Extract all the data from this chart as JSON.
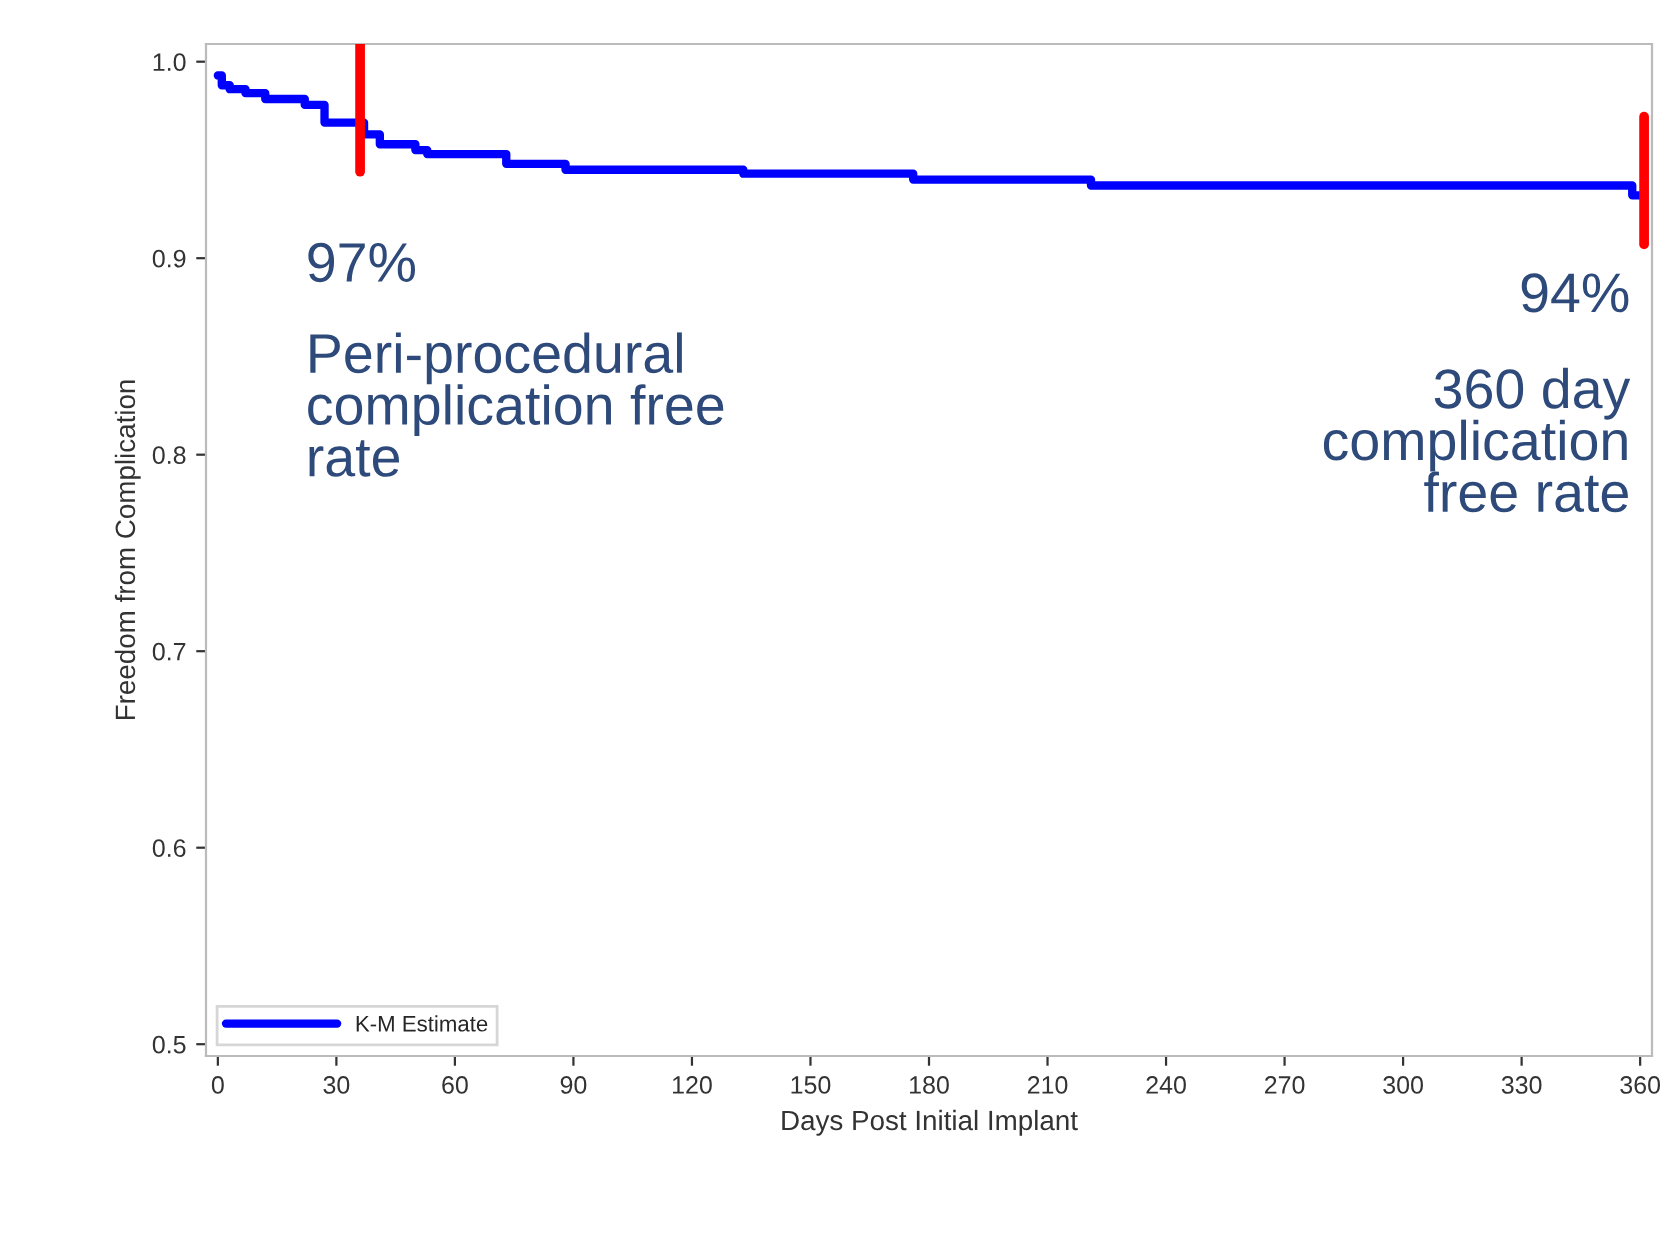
{
  "chart_data": {
    "type": "step",
    "xlabel": "Days Post Initial Implant",
    "ylabel": "Freedom from Complication",
    "x": [
      0,
      1,
      3,
      7,
      12,
      22,
      27,
      37,
      41,
      50,
      53,
      73,
      88,
      133,
      176,
      221,
      358,
      361
    ],
    "series": [
      {
        "name": "K-M Estimate",
        "color": "#0000ff",
        "values": [
          0.993,
          0.988,
          0.986,
          0.984,
          0.981,
          0.978,
          0.969,
          0.963,
          0.958,
          0.955,
          0.953,
          0.948,
          0.945,
          0.943,
          0.94,
          0.937,
          0.932,
          0.932
        ]
      }
    ],
    "xlim": [
      -3,
      363
    ],
    "xticks": [
      0,
      30,
      60,
      90,
      120,
      150,
      180,
      210,
      240,
      270,
      300,
      330,
      360
    ],
    "ylim": [
      0.494,
      1.009
    ],
    "yticks": [
      0.5,
      0.6,
      0.7,
      0.8,
      0.9,
      {
        "value": 1.0,
        "label": "1.0"
      }
    ],
    "ref_lines": [
      {
        "axis": "x",
        "value": 36,
        "color": "#ff0000"
      },
      {
        "axis": "x",
        "value": 361,
        "color": "#ff0000"
      }
    ],
    "annotations": [
      "97%",
      "Peri-procedural\ncomplication free\nrate",
      "94%",
      "360 day\ncomplication\nfree rate"
    ],
    "legend": "bottom left",
    "grid": false
  }
}
